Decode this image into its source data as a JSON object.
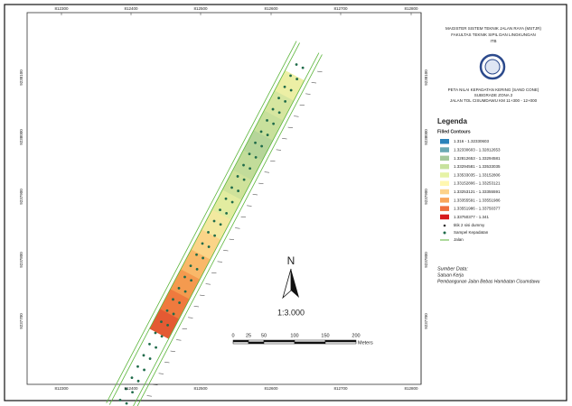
{
  "map": {
    "x_labels": [
      "812300",
      "812400",
      "812500",
      "812600",
      "812700",
      "812800"
    ],
    "y_labels": [
      "9238100",
      "9238000",
      "9237900",
      "9237800",
      "9237700"
    ],
    "north": "N",
    "scale": "1:3.000",
    "scale_bar": {
      "labels": [
        "0",
        "25",
        "50",
        "100",
        "150",
        "200"
      ],
      "unit": "Meters"
    }
  },
  "panel": {
    "institution": [
      "MAGISTER SISTEM TEKNIK JALAN RAYA (MSTJR)",
      "FAKULTAS TEKNIK SIPIL DAN LINGKUNGAN",
      "ITB"
    ],
    "map_title": [
      "PETA NILAI KEPADATAN KERING (SAND CONE)",
      "SUBGRADE ZONA 2",
      "JALAN TOL CISUMDAWU KM 11+300 - 12+000"
    ],
    "legend": {
      "title": "Legenda",
      "subtitle": "Filled Contours",
      "items": [
        {
          "label": "1.316 - 1.32330603",
          "color": "#2b83ba"
        },
        {
          "label": "1.32330603 - 1.32812653",
          "color": "#6aa9b3"
        },
        {
          "label": "1.32812653 - 1.33294581",
          "color": "#a5c99b"
        },
        {
          "label": "1.33294581 - 1.33533035",
          "color": "#c7e29d"
        },
        {
          "label": "1.33533035 - 1.33152806",
          "color": "#e6f3a6"
        },
        {
          "label": "1.33152806 - 1.33253121",
          "color": "#fff7b0"
        },
        {
          "label": "1.33253121 - 1.33355591",
          "color": "#fdd28a"
        },
        {
          "label": "1.33355591 - 1.33551986",
          "color": "#f9a55a"
        },
        {
          "label": "1.33551986 - 1.33750377",
          "color": "#ef6f3e"
        },
        {
          "label": "1.33750377 - 1.341",
          "color": "#d7191c"
        }
      ],
      "symbols": [
        "titik 2 sisi dummy",
        "Sampel Kepadatan",
        "Jalan"
      ]
    },
    "source": {
      "title": "Sumber Data:",
      "lines": [
        "Satuan Kerja",
        "Pembangunan Jalan Bebas Hambatan Cisumdawu"
      ]
    }
  }
}
